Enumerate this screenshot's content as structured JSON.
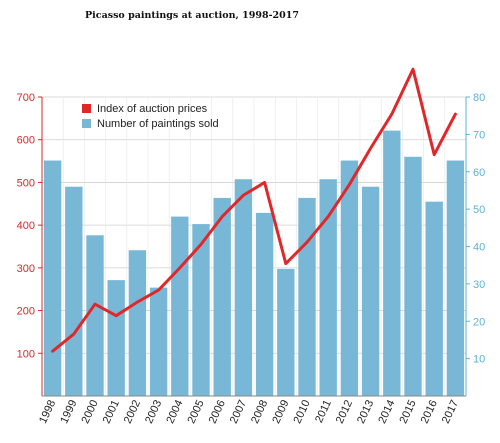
{
  "title": "Picasso paintings at auction, 1998-2017",
  "chart_data": {
    "type": "bar",
    "categories": [
      "1998",
      "1999",
      "2000",
      "2001",
      "2002",
      "2003",
      "2004",
      "2005",
      "2006",
      "2007",
      "2008",
      "2009",
      "2010",
      "2011",
      "2012",
      "2013",
      "2014",
      "2015",
      "2016",
      "2017"
    ],
    "series": [
      {
        "name": "Number of paintings sold",
        "type": "bar",
        "axis": "right",
        "color": "#78b8d6",
        "values": [
          63,
          56,
          43,
          31,
          39,
          29,
          48,
          46,
          53,
          58,
          49,
          34,
          53,
          58,
          63,
          56,
          71,
          64,
          52,
          63
        ]
      },
      {
        "name": "Index of auction prices",
        "type": "line",
        "axis": "left",
        "color": "#e0282a",
        "values": [
          105,
          145,
          215,
          188,
          220,
          248,
          300,
          355,
          420,
          470,
          500,
          310,
          360,
          420,
          495,
          580,
          660,
          765,
          565,
          660
        ]
      }
    ],
    "y_left": {
      "ylim": [
        0,
        700
      ],
      "ticks": [
        100,
        200,
        300,
        400,
        500,
        600,
        700
      ]
    },
    "y_right": {
      "ylim": [
        0,
        80
      ],
      "ticks": [
        10,
        20,
        30,
        40,
        50,
        60,
        70,
        80
      ]
    },
    "grid": true,
    "legend": "top-left"
  }
}
